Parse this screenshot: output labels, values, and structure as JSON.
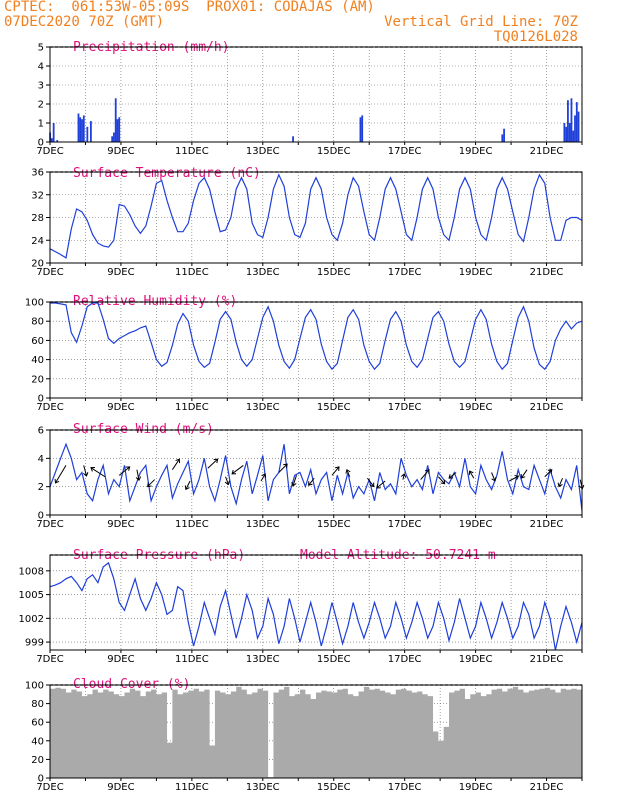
{
  "header": {
    "line1": "CPTEC:  061:53W-05:09S  PROX01: CODAJAS (AM)",
    "line2": "07DEC2020 70Z (GMT)",
    "grid_note": "Vertical Grid Line: 70Z",
    "run_id": "TQ0126L028"
  },
  "colors": {
    "line": "#1f3fd9",
    "title": "#e0107a",
    "header": "#f08020",
    "cloud": "#aaaaaa",
    "arrow": "#000000"
  },
  "x_labels": [
    "7DEC",
    "9DEC",
    "11DEC",
    "13DEC",
    "15DEC",
    "17DEC",
    "19DEC",
    "21DEC"
  ],
  "chart_data": [
    {
      "type": "bar",
      "title": "Precipitation (mm/h)",
      "ylim": [
        0,
        5
      ],
      "yticks": [
        0,
        1,
        2,
        3,
        4,
        5
      ],
      "x_days": [
        7,
        22
      ],
      "values_by_day": [
        [
          7.0,
          0.5
        ],
        [
          7.05,
          0.2
        ],
        [
          7.1,
          1.0
        ],
        [
          7.2,
          0.1
        ],
        [
          7.8,
          1.5
        ],
        [
          7.85,
          1.3
        ],
        [
          7.9,
          1.2
        ],
        [
          7.95,
          1.4
        ],
        [
          8.05,
          0.8
        ],
        [
          8.15,
          1.1
        ],
        [
          8.75,
          0.3
        ],
        [
          8.85,
          2.3
        ],
        [
          8.9,
          1.2
        ],
        [
          8.95,
          1.3
        ],
        [
          8.8,
          0.5
        ],
        [
          13.85,
          0.3
        ],
        [
          15.75,
          1.3
        ],
        [
          15.8,
          1.4
        ],
        [
          19.75,
          0.4
        ],
        [
          19.8,
          0.7
        ],
        [
          21.5,
          1.0
        ],
        [
          21.55,
          0.8
        ],
        [
          21.6,
          2.2
        ],
        [
          21.65,
          1.0
        ],
        [
          21.7,
          2.3
        ],
        [
          21.75,
          0.6
        ],
        [
          21.8,
          1.4
        ],
        [
          21.85,
          2.1
        ],
        [
          21.9,
          1.6
        ]
      ]
    },
    {
      "type": "line",
      "title": "Surface Temperature (nC)",
      "ylim": [
        20,
        36
      ],
      "yticks": [
        20,
        24,
        28,
        32,
        36
      ],
      "x": [
        7.0,
        7.15,
        7.3,
        7.45,
        7.6,
        7.75,
        7.9,
        8.05,
        8.2,
        8.35,
        8.5,
        8.65,
        8.8,
        8.95,
        9.1,
        9.25,
        9.4,
        9.55,
        9.7,
        9.85,
        10.0,
        10.15,
        10.3,
        10.45,
        10.6,
        10.75,
        10.9,
        11.05,
        11.2,
        11.35,
        11.5,
        11.65,
        11.8,
        11.95,
        12.1,
        12.25,
        12.4,
        12.55,
        12.7,
        12.85,
        13.0,
        13.15,
        13.3,
        13.45,
        13.6,
        13.75,
        13.9,
        14.05,
        14.2,
        14.35,
        14.5,
        14.65,
        14.8,
        14.95,
        15.1,
        15.25,
        15.4,
        15.55,
        15.7,
        15.85,
        16.0,
        16.15,
        16.3,
        16.45,
        16.6,
        16.75,
        16.9,
        17.05,
        17.2,
        17.35,
        17.5,
        17.65,
        17.8,
        17.95,
        18.1,
        18.25,
        18.4,
        18.55,
        18.7,
        18.85,
        19.0,
        19.15,
        19.3,
        19.45,
        19.6,
        19.75,
        19.9,
        20.05,
        20.2,
        20.35,
        20.5,
        20.65,
        20.8,
        20.95,
        21.1,
        21.25,
        21.4,
        21.55,
        21.7,
        21.85,
        22.0
      ],
      "y": [
        22.5,
        22,
        21.5,
        20.9,
        26,
        29.5,
        29,
        27.5,
        25,
        23.5,
        23,
        22.8,
        24,
        30.3,
        30,
        28.5,
        26.5,
        25.2,
        26.5,
        30,
        34,
        34.5,
        31,
        28,
        25.5,
        25.5,
        27,
        31,
        34,
        35,
        33,
        29,
        25.5,
        25.8,
        28,
        33,
        35,
        33,
        27,
        25,
        24.5,
        28,
        33,
        35.5,
        33.5,
        28,
        25,
        24.5,
        27,
        33,
        35,
        33,
        28,
        25,
        24,
        27,
        32,
        35,
        33.5,
        29,
        25,
        24,
        28,
        33,
        35,
        33,
        29,
        25,
        24,
        28,
        33,
        35,
        33,
        28,
        25,
        24,
        28,
        33,
        35,
        33,
        28,
        25,
        24,
        28,
        33,
        35,
        33,
        29,
        25,
        23.8,
        28,
        33,
        35.5,
        34,
        28,
        24,
        24,
        27.5,
        28,
        28,
        27.5
      ]
    },
    {
      "type": "line",
      "title": "Relative Humidity (%)",
      "ylim": [
        0,
        100
      ],
      "yticks": [
        0,
        20,
        40,
        60,
        80,
        100
      ],
      "x": [
        7.0,
        7.15,
        7.3,
        7.45,
        7.6,
        7.75,
        7.9,
        8.05,
        8.2,
        8.35,
        8.5,
        8.65,
        8.8,
        8.95,
        9.1,
        9.25,
        9.4,
        9.55,
        9.7,
        9.85,
        10.0,
        10.15,
        10.3,
        10.45,
        10.6,
        10.75,
        10.9,
        11.05,
        11.2,
        11.35,
        11.5,
        11.65,
        11.8,
        11.95,
        12.1,
        12.25,
        12.4,
        12.55,
        12.7,
        12.85,
        13.0,
        13.15,
        13.3,
        13.45,
        13.6,
        13.75,
        13.9,
        14.05,
        14.2,
        14.35,
        14.5,
        14.65,
        14.8,
        14.95,
        15.1,
        15.25,
        15.4,
        15.55,
        15.7,
        15.85,
        16.0,
        16.15,
        16.3,
        16.45,
        16.6,
        16.75,
        16.9,
        17.05,
        17.2,
        17.35,
        17.5,
        17.65,
        17.8,
        17.95,
        18.1,
        18.25,
        18.4,
        18.55,
        18.7,
        18.85,
        19.0,
        19.15,
        19.3,
        19.45,
        19.6,
        19.75,
        19.9,
        20.05,
        20.2,
        20.35,
        20.5,
        20.65,
        20.8,
        20.95,
        21.1,
        21.25,
        21.4,
        21.55,
        21.7,
        21.85,
        22.0
      ],
      "y": [
        99,
        99,
        98,
        97,
        68,
        58,
        75,
        95,
        99,
        99,
        82,
        62,
        57,
        62,
        65,
        68,
        70,
        73,
        75,
        58,
        40,
        33,
        37,
        55,
        77,
        88,
        80,
        55,
        38,
        32,
        36,
        58,
        82,
        90,
        82,
        58,
        40,
        33,
        40,
        62,
        84,
        95,
        80,
        55,
        38,
        31,
        40,
        62,
        84,
        92,
        82,
        56,
        38,
        30,
        36,
        60,
        84,
        92,
        82,
        55,
        38,
        30,
        36,
        60,
        82,
        90,
        80,
        55,
        38,
        32,
        40,
        62,
        84,
        90,
        80,
        56,
        38,
        32,
        38,
        60,
        82,
        92,
        82,
        56,
        38,
        30,
        36,
        60,
        84,
        95,
        80,
        52,
        35,
        30,
        38,
        60,
        72,
        80,
        72,
        78,
        80
      ]
    },
    {
      "type": "line",
      "title": "Surface Wind (m/s)",
      "ylim": [
        0,
        6
      ],
      "yticks": [
        0,
        2,
        4,
        6
      ],
      "x": [
        7.0,
        7.15,
        7.3,
        7.45,
        7.6,
        7.75,
        7.9,
        8.05,
        8.2,
        8.35,
        8.5,
        8.65,
        8.8,
        8.95,
        9.1,
        9.25,
        9.4,
        9.55,
        9.7,
        9.85,
        10.0,
        10.15,
        10.3,
        10.45,
        10.6,
        10.75,
        10.9,
        11.05,
        11.2,
        11.35,
        11.5,
        11.65,
        11.8,
        11.95,
        12.1,
        12.25,
        12.4,
        12.55,
        12.7,
        12.85,
        13.0,
        13.15,
        13.3,
        13.45,
        13.6,
        13.75,
        13.9,
        14.05,
        14.2,
        14.35,
        14.5,
        14.65,
        14.8,
        14.95,
        15.1,
        15.25,
        15.4,
        15.55,
        15.7,
        15.85,
        16.0,
        16.15,
        16.3,
        16.45,
        16.6,
        16.75,
        16.9,
        17.05,
        17.2,
        17.35,
        17.5,
        17.65,
        17.8,
        17.95,
        18.1,
        18.25,
        18.4,
        18.55,
        18.7,
        18.85,
        19.0,
        19.15,
        19.3,
        19.45,
        19.6,
        19.75,
        19.9,
        20.05,
        20.2,
        20.35,
        20.5,
        20.65,
        20.8,
        20.95,
        21.1,
        21.25,
        21.4,
        21.55,
        21.7,
        21.85,
        22.0
      ],
      "y": [
        2,
        3,
        4,
        5,
        4,
        2.5,
        3,
        1.5,
        1,
        2.5,
        3.5,
        1.5,
        2.5,
        2,
        3.5,
        1,
        2,
        3,
        3.5,
        1,
        2,
        2.8,
        3.5,
        1.2,
        2.2,
        3,
        3.8,
        1.5,
        2.5,
        4,
        2,
        1,
        2.5,
        4.2,
        2,
        0.8,
        2.5,
        3.8,
        1.5,
        2.8,
        4.2,
        1,
        2.5,
        3,
        5,
        1.5,
        2.8,
        3,
        2,
        3.2,
        1.5,
        2.5,
        3,
        1,
        2.8,
        1.5,
        3,
        1.2,
        2,
        1.5,
        2.5,
        1,
        3,
        1.8,
        2.2,
        1.5,
        4,
        2.8,
        2,
        2.5,
        1.8,
        3.5,
        1.5,
        3,
        2.5,
        2.2,
        3,
        2,
        4,
        2,
        1.5,
        3.5,
        2.5,
        1.8,
        2.8,
        4.5,
        2.5,
        1.5,
        3.2,
        2,
        1.8,
        3.5,
        2.5,
        1.5,
        3.2,
        2,
        1.2,
        2.5,
        1.8,
        3.5,
        0.3
      ]
    },
    {
      "type": "line",
      "title": "Surface Pressure (hPa)",
      "annotation": "Model Altitude: 50.7241 m",
      "ylim": [
        998,
        1010
      ],
      "yticks": [
        999,
        1002,
        1005,
        1008
      ],
      "x": [
        7.0,
        7.15,
        7.3,
        7.45,
        7.6,
        7.75,
        7.9,
        8.05,
        8.2,
        8.35,
        8.5,
        8.65,
        8.8,
        8.95,
        9.1,
        9.25,
        9.4,
        9.55,
        9.7,
        9.85,
        10.0,
        10.15,
        10.3,
        10.45,
        10.6,
        10.75,
        10.9,
        11.05,
        11.2,
        11.35,
        11.5,
        11.65,
        11.8,
        11.95,
        12.1,
        12.25,
        12.4,
        12.55,
        12.7,
        12.85,
        13.0,
        13.15,
        13.3,
        13.45,
        13.6,
        13.75,
        13.9,
        14.05,
        14.2,
        14.35,
        14.5,
        14.65,
        14.8,
        14.95,
        15.1,
        15.25,
        15.4,
        15.55,
        15.7,
        15.85,
        16.0,
        16.15,
        16.3,
        16.45,
        16.6,
        16.75,
        16.9,
        17.05,
        17.2,
        17.35,
        17.5,
        17.65,
        17.8,
        17.95,
        18.1,
        18.25,
        18.4,
        18.55,
        18.7,
        18.85,
        19.0,
        19.15,
        19.3,
        19.45,
        19.6,
        19.75,
        19.9,
        20.05,
        20.2,
        20.35,
        20.5,
        20.65,
        20.8,
        20.95,
        21.1,
        21.25,
        21.4,
        21.55,
        21.7,
        21.85,
        22.0
      ],
      "y": [
        1006,
        1006.2,
        1006.5,
        1007,
        1007.3,
        1006.5,
        1005.5,
        1007,
        1007.5,
        1006.5,
        1008.5,
        1009,
        1007,
        1004,
        1003,
        1005,
        1007,
        1004.5,
        1003,
        1004.5,
        1006.5,
        1005,
        1002.5,
        1003,
        1006,
        1005.5,
        1001.5,
        998.5,
        1001,
        1004,
        1002,
        1000,
        1003.5,
        1005.5,
        1002.5,
        999.5,
        1002,
        1005,
        1003,
        999.5,
        1001,
        1004.5,
        1002.5,
        998.8,
        1001,
        1004.5,
        1002,
        999,
        1001.5,
        1004,
        1001.5,
        998.5,
        1001,
        1004,
        1001.5,
        998.8,
        1001,
        1004,
        1001.5,
        999.5,
        1001.5,
        1004,
        1002,
        999.5,
        1001,
        1004,
        1002,
        999.5,
        1001.5,
        1004,
        1002,
        999.5,
        1001,
        1004,
        1002,
        999.2,
        1001.5,
        1004.5,
        1002,
        999.5,
        1001,
        1004,
        1002,
        999.5,
        1001.5,
        1004,
        1002,
        999.5,
        1001,
        1004,
        1002.5,
        999.5,
        1001,
        1004,
        1002,
        998,
        1001,
        1003.5,
        1001.5,
        999,
        1001.5
      ]
    },
    {
      "type": "area",
      "title": "Cloud Cover (%)",
      "ylim": [
        0,
        100
      ],
      "yticks": [
        0,
        20,
        40,
        60,
        80,
        100
      ],
      "x": [
        7.0,
        7.15,
        7.3,
        7.45,
        7.6,
        7.75,
        7.9,
        8.05,
        8.2,
        8.35,
        8.5,
        8.65,
        8.8,
        8.95,
        9.1,
        9.25,
        9.4,
        9.55,
        9.7,
        9.85,
        10.0,
        10.15,
        10.3,
        10.45,
        10.6,
        10.75,
        10.9,
        11.05,
        11.2,
        11.35,
        11.5,
        11.65,
        11.8,
        11.95,
        12.1,
        12.25,
        12.4,
        12.55,
        12.7,
        12.85,
        13.0,
        13.15,
        13.3,
        13.45,
        13.6,
        13.75,
        13.9,
        14.05,
        14.2,
        14.35,
        14.5,
        14.65,
        14.8,
        14.95,
        15.1,
        15.25,
        15.4,
        15.55,
        15.7,
        15.85,
        16.0,
        16.15,
        16.3,
        16.45,
        16.6,
        16.75,
        16.9,
        17.05,
        17.2,
        17.35,
        17.5,
        17.65,
        17.8,
        17.95,
        18.1,
        18.25,
        18.4,
        18.55,
        18.7,
        18.85,
        19.0,
        19.15,
        19.3,
        19.45,
        19.6,
        19.75,
        19.9,
        20.05,
        20.2,
        20.35,
        20.5,
        20.65,
        20.8,
        20.95,
        21.1,
        21.25,
        21.4,
        21.55,
        21.7,
        21.85,
        22.0
      ],
      "y": [
        96,
        97,
        96,
        92,
        95,
        93,
        88,
        90,
        95,
        92,
        95,
        93,
        90,
        88,
        92,
        96,
        94,
        88,
        93,
        95,
        90,
        92,
        38,
        95,
        90,
        92,
        94,
        96,
        93,
        95,
        35,
        94,
        92,
        90,
        93,
        98,
        95,
        90,
        92,
        96,
        94,
        1,
        92,
        95,
        98,
        88,
        90,
        95,
        90,
        85,
        92,
        94,
        93,
        92,
        95,
        96,
        90,
        88,
        93,
        98,
        95,
        96,
        94,
        92,
        90,
        95,
        96,
        94,
        92,
        93,
        90,
        88,
        50,
        40,
        55,
        92,
        94,
        96,
        85,
        90,
        92,
        88,
        90,
        95,
        96,
        93,
        96,
        98,
        95,
        92,
        94,
        95,
        96,
        97,
        95,
        92,
        96,
        95,
        96,
        95,
        96
      ]
    },
    {
      "type": "scatter",
      "title": "Surface Wind vectors",
      "note": "direction arrows overlaid on wind speed panel",
      "x": [
        7.45,
        7.95,
        8.55,
        8.95,
        9.45,
        9.95,
        10.45,
        10.95,
        11.45,
        11.95,
        12.45,
        12.95,
        13.45,
        13.95,
        14.45,
        14.95,
        15.45,
        15.95,
        16.45,
        16.95,
        17.45,
        17.95,
        18.45,
        18.95,
        19.45,
        19.95,
        20.45,
        20.95,
        21.45,
        21.95
      ],
      "y": [
        3.5,
        3.5,
        2.7,
        2.8,
        3.2,
        2.5,
        3.2,
        2.4,
        3.3,
        2.7,
        3.5,
        2.4,
        3.0,
        2.8,
        2.6,
        2.8,
        2.7,
        2.6,
        2.4,
        2.5,
        2.5,
        2.7,
        3.0,
        2.6,
        3.0,
        2.4,
        3.2,
        2.7,
        2.6,
        2.5
      ],
      "u": [
        -1.5,
        0.4,
        -2,
        1.5,
        0.3,
        -1,
        1,
        -0.6,
        1.4,
        0.4,
        -1.6,
        0.6,
        1.2,
        -0.5,
        -0.8,
        1.0,
        -0.4,
        0.9,
        -1.2,
        0.2,
        1.2,
        0.9,
        -1.0,
        -0.6,
        0.5,
        1.3,
        -0.8,
        1.0,
        -0.5,
        0.3
      ],
      "v": [
        -2.5,
        -1.5,
        1.3,
        1.2,
        -1.5,
        -1,
        1.5,
        -1.2,
        1.3,
        -1.1,
        -1.2,
        1.0,
        1.2,
        -1.5,
        -1.0,
        1.2,
        1.0,
        -1.2,
        -1.0,
        0.8,
        1.4,
        -1.0,
        -0.8,
        1.0,
        -1.2,
        0.7,
        -1.2,
        1.0,
        -1.2,
        -1.3
      ]
    }
  ]
}
